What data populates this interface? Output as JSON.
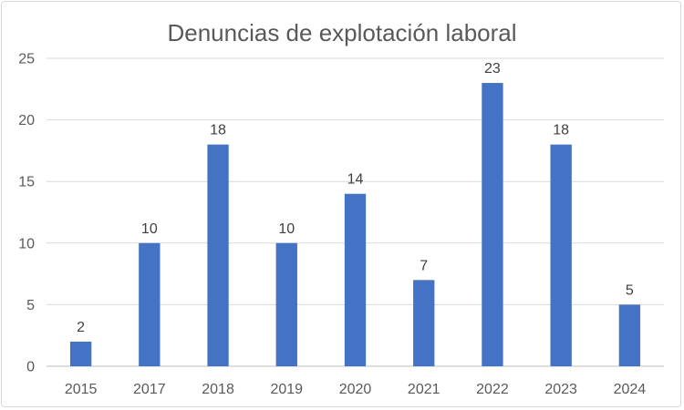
{
  "chart_data": {
    "type": "bar",
    "title": "Denuncias de explotación laboral",
    "categories": [
      "2015",
      "2017",
      "2018",
      "2019",
      "2020",
      "2021",
      "2022",
      "2023",
      "2024"
    ],
    "values": [
      2,
      10,
      18,
      10,
      14,
      7,
      23,
      18,
      5
    ],
    "ylim": [
      0,
      25
    ],
    "yticks": [
      0,
      5,
      10,
      15,
      20,
      25
    ],
    "xlabel": "",
    "ylabel": "",
    "grid": true,
    "legend": "none",
    "bar_color": "#4472c4",
    "data_labels": true
  }
}
